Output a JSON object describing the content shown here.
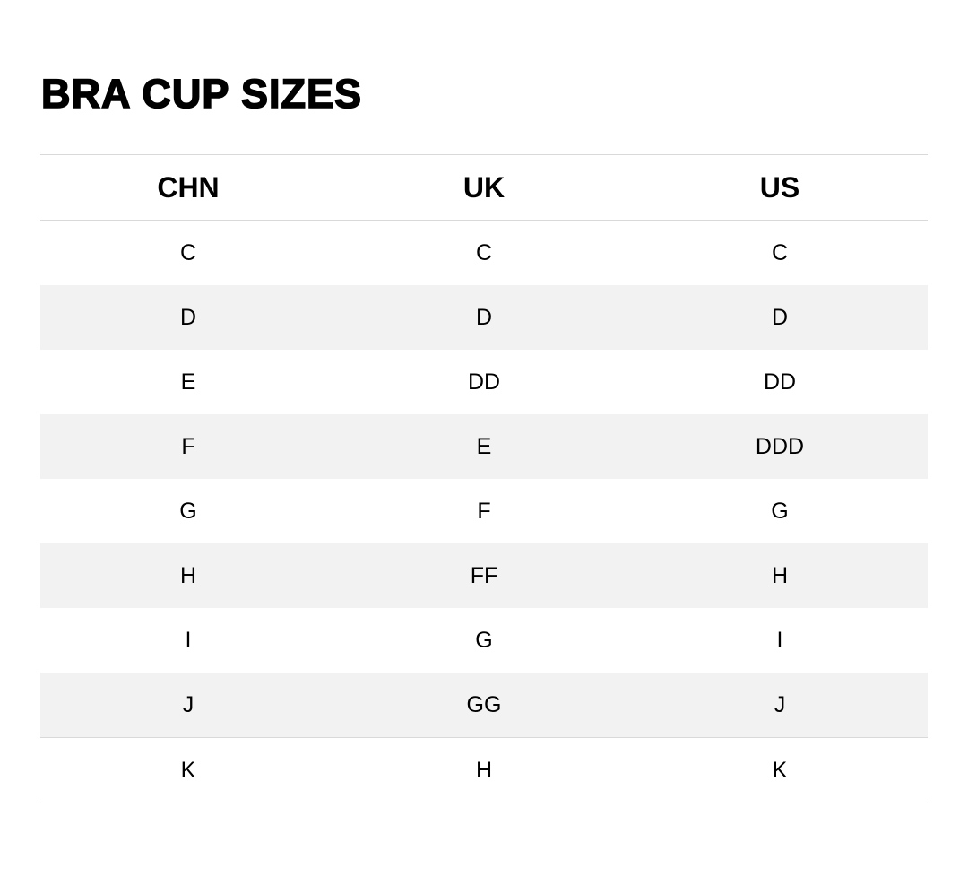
{
  "title": "BRA CUP SIZES",
  "headers": [
    "CHN",
    "UK",
    "US"
  ],
  "rows": [
    [
      "C",
      "C",
      "C"
    ],
    [
      "D",
      "D",
      "D"
    ],
    [
      "E",
      "DD",
      "DD"
    ],
    [
      "F",
      "E",
      "DDD"
    ],
    [
      "G",
      "F",
      "G"
    ],
    [
      "H",
      "FF",
      "H"
    ],
    [
      "I",
      "G",
      "I"
    ],
    [
      "J",
      "GG",
      "J"
    ],
    [
      "K",
      "H",
      "K"
    ]
  ],
  "colors": {
    "stripe": "#f2f2f2",
    "border": "#d9d9d9"
  }
}
